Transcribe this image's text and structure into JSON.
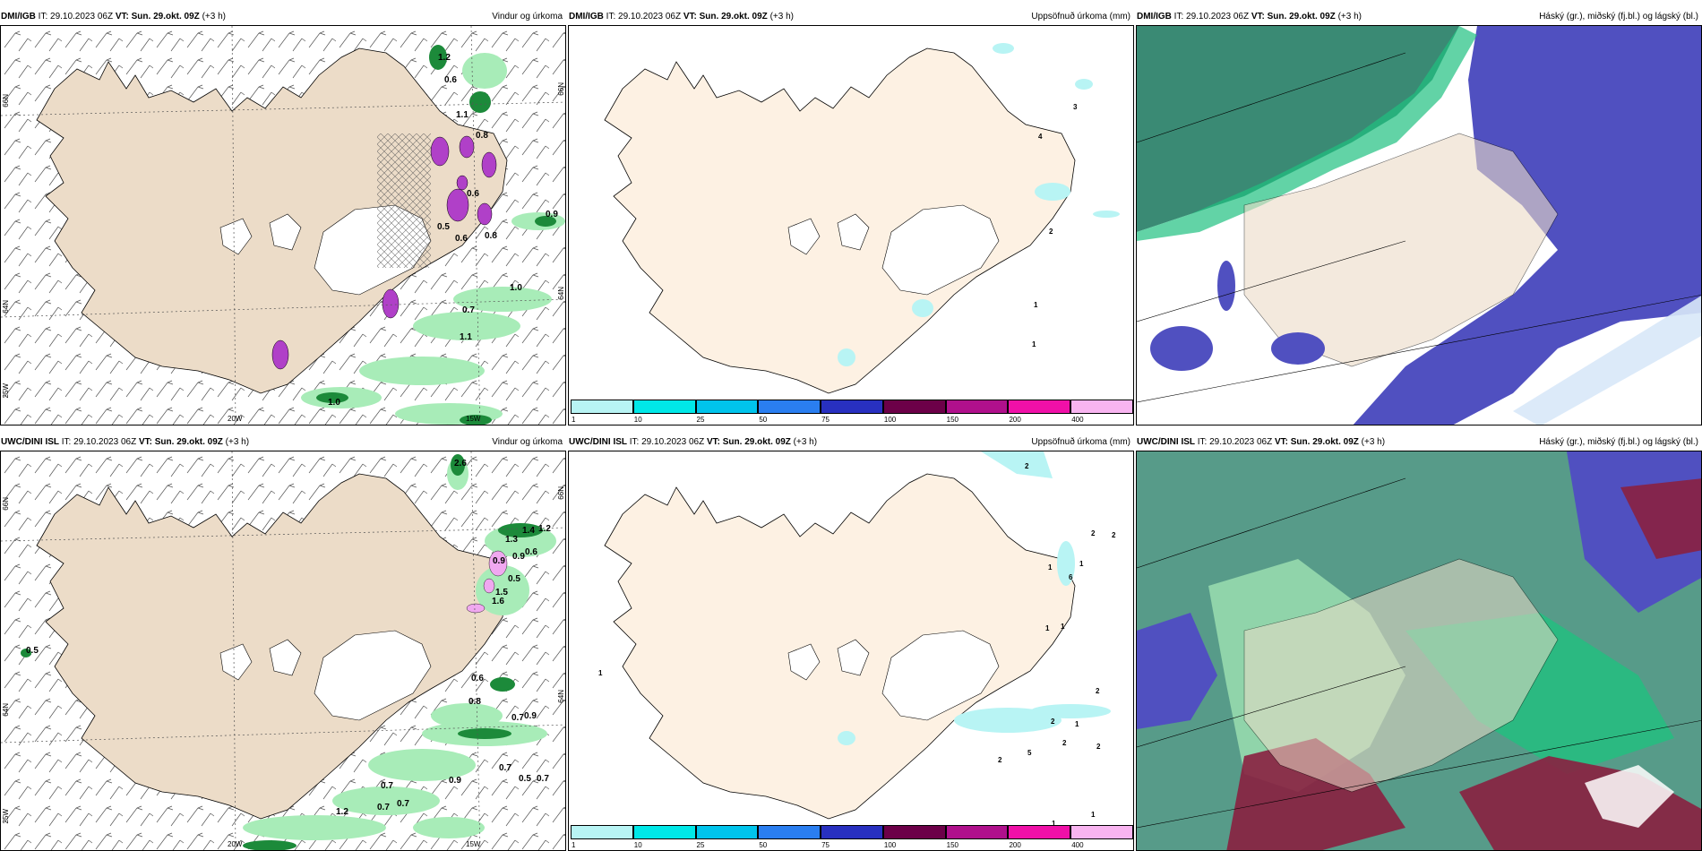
{
  "panels": [
    {
      "model": "DMI/IGB",
      "it": "IT: 29.10.2023 06Z",
      "vt_label": "VT:",
      "vt": "Sun. 29.okt. 09Z",
      "lead": "(+3 h)",
      "title": "Vindur og úrkoma",
      "values": [
        "1.2",
        "0.6",
        "1.1",
        "0.8",
        "0.6",
        "0.5",
        "0.6",
        "0.8",
        "0.9",
        "1.0",
        "0.7",
        "1.1",
        "1.0"
      ]
    },
    {
      "model": "DMI/IGB",
      "it": "IT: 29.10.2023 06Z",
      "vt_label": "VT:",
      "vt": "Sun. 29.okt. 09Z",
      "lead": "(+3 h)",
      "title": "Uppsöfnuð úrkoma (mm)",
      "values": [
        "3",
        "4",
        "2",
        "1",
        "1"
      ]
    },
    {
      "model": "DMI/IGB",
      "it": "IT: 29.10.2023 06Z",
      "vt_label": "VT:",
      "vt": "Sun. 29.okt. 09Z",
      "lead": "(+3 h)",
      "title": "Háský (gr.), miðský (fj.bl.) og lágský (bl.)"
    },
    {
      "model": "UWC/DINI ISL",
      "it": "IT: 29.10.2023 06Z",
      "vt_label": "VT:",
      "vt": "Sun. 29.okt. 09Z",
      "lead": "(+3 h)",
      "title": "Vindur og úrkoma",
      "values": [
        "2.6",
        "1.4",
        "1.2",
        "1.3",
        "0.9",
        "0.6",
        "0.9",
        "0.5",
        "1.5",
        "1.6",
        "0.5",
        "0.6",
        "0.8",
        "0.7",
        "0.9",
        "0.7",
        "0.9",
        "0.7",
        "0.5",
        "0.7",
        "0.7",
        "0.7",
        "1.2"
      ]
    },
    {
      "model": "UWC/DINI ISL",
      "it": "IT: 29.10.2023 06Z",
      "vt_label": "VT:",
      "vt": "Sun. 29.okt. 09Z",
      "lead": "(+3 h)",
      "title": "Uppsöfnuð úrkoma (mm)",
      "values": [
        "2",
        "2",
        "2",
        "1",
        "1",
        "6",
        "1",
        "1",
        "2",
        "2",
        "1",
        "2",
        "2",
        "2",
        "5",
        "1",
        "1",
        "1"
      ]
    },
    {
      "model": "UWC/DINI ISL",
      "it": "IT: 29.10.2023 06Z",
      "vt_label": "VT:",
      "vt": "Sun. 29.okt. 09Z",
      "lead": "(+3 h)",
      "title": "Háský (gr.), miðský (fj.bl.) og lágský (bl.)"
    }
  ],
  "axes": {
    "lat_66": "66N",
    "lat_64": "64N",
    "lon_25": "25W",
    "lon_20": "20W",
    "lon_15": "15W"
  },
  "colorbar": {
    "labels": [
      "1",
      "10",
      "25",
      "50",
      "75",
      "100",
      "150",
      "200",
      "400"
    ],
    "colors": [
      "#b8f4f4",
      "#00e8e8",
      "#00c4ec",
      "#2a7ef0",
      "#2830c0",
      "#6c0048",
      "#b0108c",
      "#f010a8",
      "#f8b4f0"
    ]
  },
  "colors": {
    "land": "#ecdcc8",
    "land_light": "#fdf1e3",
    "precip_green": "#a8ecb8",
    "precip_dark": "#1c8a3a",
    "precip_purple": "#b040c8",
    "cloud_high": "#3a8a74",
    "cloud_mid": "#5050c0",
    "cloud_low": "#8a2040",
    "cloud_green": "#20c080"
  }
}
